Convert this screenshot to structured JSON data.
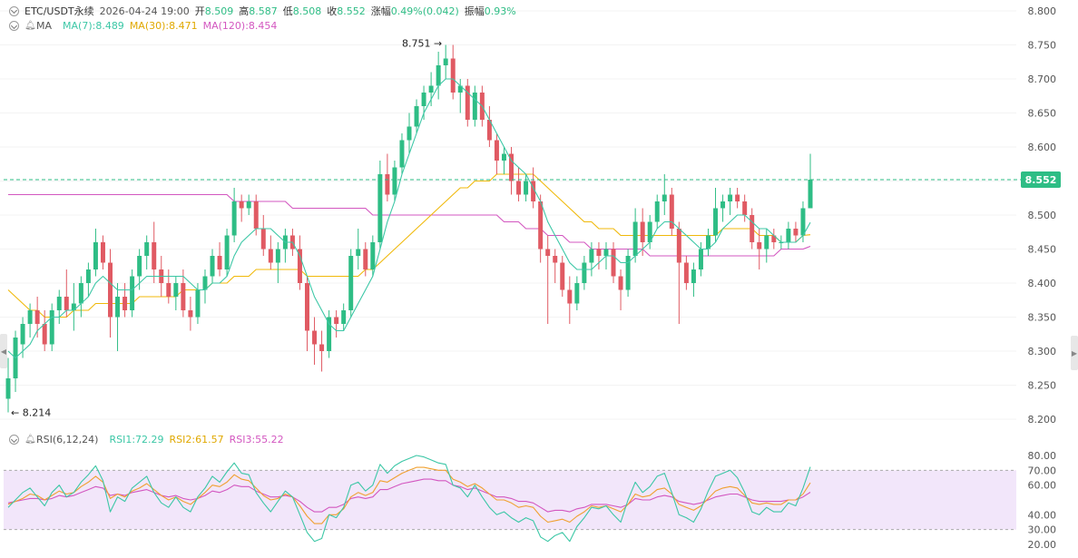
{
  "header": {
    "symbol": "ETC/USDT永续",
    "datetime": "2026-04-24 19:00",
    "open_label": "开",
    "open": "8.509",
    "high_label": "高",
    "high": "8.587",
    "low_label": "低",
    "low": "8.508",
    "close_label": "收",
    "close": "8.552",
    "change_label": "涨幅",
    "change": "0.49%(0.042)",
    "amplitude_label": "振幅",
    "amplitude": "0.93%"
  },
  "ma_legend": {
    "name": "MA",
    "ma7": "MA(7):8.489",
    "ma30": "MA(30):8.471",
    "ma120": "MA(120):8.454"
  },
  "rsi_legend": {
    "name": "RSI(6,12,24)",
    "rsi1": "RSI1:72.29",
    "rsi2": "RSI2:61.57",
    "rsi3": "RSI3:55.22"
  },
  "colors": {
    "up": "#2ebd85",
    "down": "#e05a63",
    "ma7": "#3cc7a6",
    "ma30": "#f0b90b",
    "ma120": "#d357c0",
    "rsi1": "#3cc7a6",
    "rsi2": "#f0a030",
    "rsi3": "#d357c0",
    "rsi_band": "#f2e6fa",
    "price_tag": "#2ebd85"
  },
  "price_axis_labels": [
    "8.800",
    "8.750",
    "8.700",
    "8.650",
    "8.600",
    "8.550",
    "8.500",
    "8.450",
    "8.400",
    "8.350",
    "8.300",
    "8.250",
    "8.200"
  ],
  "rsi_axis_labels": [
    "80.00",
    "70.00",
    "60.00",
    "40.00",
    "30.00",
    "20.00"
  ],
  "current_price_tag": "8.552",
  "max_label": "8.751",
  "min_label": "8.214",
  "chart_data": {
    "type": "candlestick",
    "interval_note": "ETC/USDT永续",
    "ylim": [
      8.2,
      8.8
    ],
    "candles": [
      [
        8.23,
        8.29,
        8.21,
        8.26
      ],
      [
        8.26,
        8.33,
        8.24,
        8.32
      ],
      [
        8.31,
        8.35,
        8.29,
        8.34
      ],
      [
        8.34,
        8.37,
        8.32,
        8.36
      ],
      [
        8.36,
        8.38,
        8.32,
        8.34
      ],
      [
        8.34,
        8.36,
        8.3,
        8.31
      ],
      [
        8.31,
        8.37,
        8.3,
        8.36
      ],
      [
        8.36,
        8.39,
        8.34,
        8.38
      ],
      [
        8.38,
        8.42,
        8.35,
        8.36
      ],
      [
        8.36,
        8.4,
        8.33,
        8.37
      ],
      [
        8.37,
        8.41,
        8.35,
        8.4
      ],
      [
        8.4,
        8.43,
        8.38,
        8.42
      ],
      [
        8.42,
        8.48,
        8.41,
        8.46
      ],
      [
        8.46,
        8.47,
        8.42,
        8.43
      ],
      [
        8.43,
        8.45,
        8.32,
        8.35
      ],
      [
        8.35,
        8.4,
        8.3,
        8.38
      ],
      [
        8.38,
        8.4,
        8.35,
        8.36
      ],
      [
        8.36,
        8.42,
        8.35,
        8.41
      ],
      [
        8.41,
        8.45,
        8.39,
        8.44
      ],
      [
        8.44,
        8.47,
        8.42,
        8.46
      ],
      [
        8.46,
        8.49,
        8.4,
        8.42
      ],
      [
        8.42,
        8.44,
        8.38,
        8.4
      ],
      [
        8.4,
        8.42,
        8.37,
        8.38
      ],
      [
        8.38,
        8.41,
        8.36,
        8.4
      ],
      [
        8.4,
        8.42,
        8.35,
        8.36
      ],
      [
        8.36,
        8.38,
        8.33,
        8.35
      ],
      [
        8.35,
        8.4,
        8.34,
        8.39
      ],
      [
        8.39,
        8.42,
        8.37,
        8.41
      ],
      [
        8.41,
        8.45,
        8.4,
        8.44
      ],
      [
        8.44,
        8.46,
        8.41,
        8.42
      ],
      [
        8.42,
        8.48,
        8.41,
        8.47
      ],
      [
        8.47,
        8.54,
        8.46,
        8.52
      ],
      [
        8.52,
        8.53,
        8.49,
        8.51
      ],
      [
        8.51,
        8.53,
        8.5,
        8.52
      ],
      [
        8.52,
        8.53,
        8.47,
        8.48
      ],
      [
        8.48,
        8.5,
        8.44,
        8.45
      ],
      [
        8.45,
        8.47,
        8.42,
        8.43
      ],
      [
        8.43,
        8.46,
        8.4,
        8.45
      ],
      [
        8.45,
        8.48,
        8.43,
        8.47
      ],
      [
        8.47,
        8.48,
        8.44,
        8.45
      ],
      [
        8.45,
        8.47,
        8.39,
        8.4
      ],
      [
        8.4,
        8.41,
        8.3,
        8.33
      ],
      [
        8.33,
        8.35,
        8.28,
        8.31
      ],
      [
        8.31,
        8.33,
        8.27,
        8.3
      ],
      [
        8.3,
        8.36,
        8.29,
        8.35
      ],
      [
        8.35,
        8.36,
        8.32,
        8.34
      ],
      [
        8.34,
        8.37,
        8.33,
        8.36
      ],
      [
        8.36,
        8.45,
        8.35,
        8.44
      ],
      [
        8.44,
        8.48,
        8.42,
        8.45
      ],
      [
        8.45,
        8.46,
        8.41,
        8.42
      ],
      [
        8.42,
        8.47,
        8.41,
        8.46
      ],
      [
        8.46,
        8.58,
        8.45,
        8.56
      ],
      [
        8.56,
        8.59,
        8.52,
        8.53
      ],
      [
        8.53,
        8.58,
        8.52,
        8.57
      ],
      [
        8.57,
        8.62,
        8.56,
        8.61
      ],
      [
        8.61,
        8.65,
        8.59,
        8.63
      ],
      [
        8.63,
        8.67,
        8.62,
        8.66
      ],
      [
        8.66,
        8.69,
        8.64,
        8.68
      ],
      [
        8.68,
        8.71,
        8.66,
        8.69
      ],
      [
        8.69,
        8.74,
        8.67,
        8.72
      ],
      [
        8.72,
        8.75,
        8.7,
        8.73
      ],
      [
        8.73,
        8.75,
        8.67,
        8.68
      ],
      [
        8.68,
        8.7,
        8.65,
        8.69
      ],
      [
        8.69,
        8.7,
        8.63,
        8.64
      ],
      [
        8.64,
        8.69,
        8.63,
        8.68
      ],
      [
        8.68,
        8.69,
        8.63,
        8.64
      ],
      [
        8.64,
        8.66,
        8.6,
        8.61
      ],
      [
        8.61,
        8.62,
        8.56,
        8.58
      ],
      [
        8.58,
        8.6,
        8.56,
        8.59
      ],
      [
        8.59,
        8.6,
        8.53,
        8.55
      ],
      [
        8.55,
        8.57,
        8.52,
        8.53
      ],
      [
        8.53,
        8.56,
        8.52,
        8.55
      ],
      [
        8.55,
        8.57,
        8.51,
        8.52
      ],
      [
        8.52,
        8.53,
        8.43,
        8.45
      ],
      [
        8.45,
        8.47,
        8.34,
        8.44
      ],
      [
        8.44,
        8.45,
        8.4,
        8.43
      ],
      [
        8.43,
        8.44,
        8.38,
        8.39
      ],
      [
        8.39,
        8.41,
        8.34,
        8.37
      ],
      [
        8.37,
        8.41,
        8.36,
        8.4
      ],
      [
        8.4,
        8.44,
        8.39,
        8.43
      ],
      [
        8.43,
        8.46,
        8.41,
        8.45
      ],
      [
        8.45,
        8.46,
        8.42,
        8.44
      ],
      [
        8.44,
        8.46,
        8.42,
        8.45
      ],
      [
        8.45,
        8.46,
        8.4,
        8.41
      ],
      [
        8.41,
        8.42,
        8.36,
        8.39
      ],
      [
        8.39,
        8.45,
        8.38,
        8.44
      ],
      [
        8.44,
        8.51,
        8.43,
        8.49
      ],
      [
        8.49,
        8.51,
        8.44,
        8.46
      ],
      [
        8.46,
        8.5,
        8.45,
        8.49
      ],
      [
        8.49,
        8.53,
        8.48,
        8.52
      ],
      [
        8.52,
        8.56,
        8.5,
        8.53
      ],
      [
        8.53,
        8.54,
        8.47,
        8.48
      ],
      [
        8.48,
        8.49,
        8.34,
        8.43
      ],
      [
        8.43,
        8.44,
        8.39,
        8.4
      ],
      [
        8.4,
        8.43,
        8.38,
        8.42
      ],
      [
        8.42,
        8.46,
        8.41,
        8.45
      ],
      [
        8.45,
        8.48,
        8.44,
        8.47
      ],
      [
        8.47,
        8.54,
        8.46,
        8.51
      ],
      [
        8.51,
        8.53,
        8.49,
        8.52
      ],
      [
        8.52,
        8.54,
        8.5,
        8.53
      ],
      [
        8.53,
        8.54,
        8.51,
        8.52
      ],
      [
        8.52,
        8.53,
        8.49,
        8.5
      ],
      [
        8.5,
        8.51,
        8.45,
        8.46
      ],
      [
        8.46,
        8.48,
        8.42,
        8.45
      ],
      [
        8.45,
        8.48,
        8.43,
        8.47
      ],
      [
        8.47,
        8.48,
        8.45,
        8.46
      ],
      [
        8.46,
        8.47,
        8.45,
        8.46
      ],
      [
        8.46,
        8.49,
        8.45,
        8.48
      ],
      [
        8.48,
        8.49,
        8.46,
        8.47
      ],
      [
        8.47,
        8.52,
        8.46,
        8.51
      ],
      [
        8.51,
        8.59,
        8.51,
        8.552
      ]
    ],
    "ma7": [
      8.3,
      8.29,
      8.3,
      8.31,
      8.33,
      8.34,
      8.35,
      8.35,
      8.36,
      8.36,
      8.37,
      8.38,
      8.4,
      8.41,
      8.4,
      8.39,
      8.39,
      8.39,
      8.4,
      8.41,
      8.41,
      8.41,
      8.41,
      8.41,
      8.41,
      8.4,
      8.39,
      8.39,
      8.4,
      8.4,
      8.41,
      8.44,
      8.46,
      8.47,
      8.48,
      8.48,
      8.48,
      8.47,
      8.46,
      8.46,
      8.44,
      8.41,
      8.38,
      8.36,
      8.34,
      8.33,
      8.33,
      8.35,
      8.37,
      8.39,
      8.41,
      8.45,
      8.49,
      8.52,
      8.56,
      8.59,
      8.62,
      8.65,
      8.67,
      8.69,
      8.7,
      8.7,
      8.69,
      8.68,
      8.67,
      8.66,
      8.64,
      8.62,
      8.6,
      8.58,
      8.57,
      8.56,
      8.54,
      8.52,
      8.49,
      8.47,
      8.45,
      8.43,
      8.42,
      8.42,
      8.42,
      8.43,
      8.44,
      8.44,
      8.43,
      8.43,
      8.44,
      8.45,
      8.46,
      8.48,
      8.49,
      8.49,
      8.48,
      8.47,
      8.46,
      8.45,
      8.45,
      8.46,
      8.48,
      8.49,
      8.5,
      8.5,
      8.49,
      8.48,
      8.48,
      8.47,
      8.46,
      8.46,
      8.46,
      8.47,
      8.489
    ],
    "ma30": [
      8.39,
      8.38,
      8.37,
      8.36,
      8.36,
      8.35,
      8.35,
      8.35,
      8.35,
      8.36,
      8.36,
      8.36,
      8.37,
      8.37,
      8.37,
      8.37,
      8.37,
      8.37,
      8.38,
      8.38,
      8.38,
      8.38,
      8.38,
      8.38,
      8.39,
      8.39,
      8.39,
      8.39,
      8.4,
      8.4,
      8.4,
      8.41,
      8.41,
      8.41,
      8.42,
      8.42,
      8.42,
      8.42,
      8.42,
      8.42,
      8.42,
      8.41,
      8.41,
      8.41,
      8.41,
      8.41,
      8.41,
      8.41,
      8.41,
      8.42,
      8.42,
      8.43,
      8.44,
      8.45,
      8.46,
      8.47,
      8.48,
      8.49,
      8.5,
      8.51,
      8.52,
      8.53,
      8.54,
      8.54,
      8.55,
      8.55,
      8.55,
      8.56,
      8.56,
      8.56,
      8.56,
      8.56,
      8.56,
      8.55,
      8.54,
      8.53,
      8.52,
      8.51,
      8.5,
      8.49,
      8.49,
      8.48,
      8.48,
      8.48,
      8.47,
      8.47,
      8.47,
      8.47,
      8.47,
      8.47,
      8.47,
      8.47,
      8.47,
      8.47,
      8.47,
      8.47,
      8.47,
      8.47,
      8.48,
      8.48,
      8.48,
      8.48,
      8.48,
      8.47,
      8.47,
      8.47,
      8.46,
      8.46,
      8.46,
      8.47,
      8.471
    ],
    "ma120": [
      8.53,
      8.53,
      8.53,
      8.53,
      8.53,
      8.53,
      8.53,
      8.53,
      8.53,
      8.53,
      8.53,
      8.53,
      8.53,
      8.53,
      8.53,
      8.53,
      8.53,
      8.53,
      8.53,
      8.53,
      8.53,
      8.53,
      8.53,
      8.53,
      8.53,
      8.53,
      8.53,
      8.53,
      8.53,
      8.53,
      8.53,
      8.52,
      8.52,
      8.52,
      8.52,
      8.52,
      8.52,
      8.52,
      8.52,
      8.51,
      8.51,
      8.51,
      8.51,
      8.51,
      8.51,
      8.51,
      8.51,
      8.51,
      8.51,
      8.51,
      8.5,
      8.5,
      8.5,
      8.5,
      8.5,
      8.5,
      8.5,
      8.5,
      8.5,
      8.5,
      8.5,
      8.5,
      8.5,
      8.5,
      8.5,
      8.5,
      8.5,
      8.5,
      8.49,
      8.49,
      8.49,
      8.48,
      8.48,
      8.48,
      8.47,
      8.47,
      8.47,
      8.46,
      8.46,
      8.46,
      8.45,
      8.45,
      8.45,
      8.45,
      8.45,
      8.45,
      8.45,
      8.45,
      8.44,
      8.44,
      8.44,
      8.44,
      8.44,
      8.44,
      8.44,
      8.44,
      8.44,
      8.44,
      8.44,
      8.44,
      8.44,
      8.44,
      8.44,
      8.44,
      8.44,
      8.44,
      8.45,
      8.45,
      8.45,
      8.45,
      8.454
    ],
    "rsi": {
      "ylim": [
        20,
        80
      ],
      "rsi1": [
        45,
        50,
        55,
        58,
        52,
        46,
        55,
        60,
        52,
        55,
        62,
        67,
        73,
        63,
        42,
        52,
        49,
        58,
        62,
        66,
        55,
        48,
        45,
        52,
        45,
        42,
        52,
        58,
        66,
        62,
        69,
        75,
        68,
        67,
        55,
        48,
        42,
        49,
        56,
        52,
        40,
        28,
        22,
        24,
        40,
        38,
        45,
        60,
        62,
        56,
        60,
        74,
        68,
        73,
        76,
        78,
        80,
        79,
        77,
        75,
        74,
        60,
        58,
        52,
        60,
        52,
        45,
        40,
        42,
        38,
        35,
        38,
        36,
        25,
        22,
        26,
        28,
        22,
        32,
        38,
        45,
        44,
        46,
        40,
        35,
        50,
        62,
        55,
        59,
        66,
        68,
        55,
        40,
        38,
        35,
        44,
        56,
        66,
        68,
        70,
        65,
        55,
        42,
        40,
        45,
        42,
        42,
        48,
        46,
        58,
        72.29
      ],
      "rsi2": [
        47,
        49,
        51,
        54,
        53,
        50,
        53,
        56,
        54,
        55,
        59,
        62,
        66,
        62,
        51,
        54,
        52,
        56,
        58,
        61,
        57,
        53,
        50,
        52,
        49,
        47,
        51,
        55,
        60,
        59,
        62,
        67,
        64,
        63,
        58,
        53,
        50,
        51,
        54,
        52,
        46,
        39,
        34,
        34,
        40,
        40,
        44,
        52,
        55,
        53,
        55,
        63,
        62,
        65,
        68,
        70,
        72,
        72,
        71,
        70,
        70,
        64,
        62,
        59,
        61,
        58,
        54,
        50,
        50,
        48,
        45,
        46,
        45,
        39,
        35,
        36,
        37,
        35,
        39,
        42,
        46,
        45,
        46,
        44,
        42,
        47,
        54,
        52,
        53,
        57,
        58,
        54,
        47,
        45,
        43,
        46,
        51,
        56,
        58,
        59,
        58,
        53,
        48,
        47,
        48,
        47,
        47,
        50,
        50,
        54,
        61.57
      ],
      "rsi3": [
        48,
        49,
        50,
        51,
        51,
        50,
        51,
        53,
        52,
        53,
        55,
        57,
        59,
        58,
        53,
        54,
        53,
        55,
        56,
        57,
        55,
        53,
        52,
        53,
        51,
        50,
        51,
        53,
        56,
        55,
        57,
        60,
        59,
        59,
        56,
        54,
        52,
        52,
        53,
        52,
        49,
        45,
        42,
        42,
        45,
        45,
        47,
        51,
        52,
        51,
        52,
        57,
        57,
        59,
        61,
        62,
        63,
        64,
        64,
        63,
        63,
        60,
        59,
        57,
        58,
        56,
        54,
        52,
        52,
        51,
        49,
        49,
        48,
        45,
        42,
        43,
        43,
        42,
        44,
        45,
        47,
        47,
        47,
        46,
        45,
        47,
        51,
        50,
        50,
        52,
        53,
        52,
        49,
        48,
        47,
        48,
        50,
        52,
        53,
        54,
        54,
        52,
        50,
        49,
        49,
        49,
        49,
        50,
        50,
        52,
        55.22
      ]
    }
  }
}
